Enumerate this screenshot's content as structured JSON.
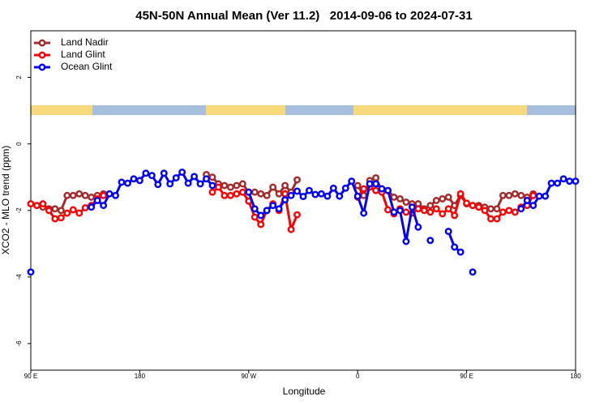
{
  "chart_data": {
    "type": "line",
    "title": "45N-50N Annual Mean (Ver 11.2)   2014-09-06 to 2024-07-31",
    "xlabel": "Longitude",
    "ylabel": "XCO2 - MLO trend (ppm)",
    "x": [
      90,
      95,
      100,
      105,
      110,
      115,
      120,
      125,
      130,
      135,
      140,
      145,
      150,
      155,
      160,
      165,
      170,
      175,
      180,
      185,
      190,
      195,
      200,
      205,
      210,
      215,
      220,
      225,
      230,
      235,
      240,
      245,
      250,
      255,
      260,
      265,
      270,
      275,
      280,
      285,
      290,
      295,
      300,
      305,
      310,
      315,
      320,
      325,
      330,
      335,
      340,
      345,
      350,
      355,
      360,
      365,
      370,
      375,
      380,
      385,
      390,
      395,
      400,
      405,
      410,
      415,
      420,
      425,
      430,
      435,
      440,
      445,
      450,
      455,
      460,
      465,
      470,
      475,
      480,
      485,
      490,
      495,
      500,
      505,
      510,
      515,
      520,
      525,
      530,
      535,
      540
    ],
    "xlim": [
      90,
      540
    ],
    "xticks": [
      {
        "value": 90,
        "label": "90 E"
      },
      180,
      {
        "value": 270,
        "label": "90 W"
      },
      {
        "value": 360,
        "label": "0"
      },
      {
        "value": 450,
        "label": "90 E"
      },
      {
        "value": 540,
        "label": "180"
      }
    ],
    "ylim": [
      -6.8,
      3.4
    ],
    "yticks": [
      -6,
      -4,
      -2,
      0,
      2
    ],
    "legend": "upper left",
    "series": [
      {
        "name": "Land Nadir",
        "color": "#a52a2a",
        "values": [
          null,
          null,
          -1.9,
          -1.95,
          -1.95,
          -2.0,
          -1.55,
          -1.55,
          -1.5,
          -1.55,
          -1.6,
          -1.55,
          -1.5,
          null,
          null,
          null,
          null,
          null,
          null,
          null,
          null,
          null,
          null,
          null,
          null,
          null,
          null,
          null,
          null,
          -0.92,
          -1.0,
          -1.2,
          -1.25,
          -1.3,
          -1.25,
          -1.2,
          -1.45,
          -1.45,
          -1.5,
          -1.55,
          -1.3,
          -1.5,
          -1.25,
          -1.45,
          -1.08,
          null,
          null,
          null,
          null,
          null,
          null,
          null,
          null,
          null,
          -1.25,
          -1.55,
          -1.1,
          -1.02,
          -1.4,
          -1.4,
          -1.6,
          -1.65,
          -1.75,
          -1.8,
          -1.8,
          -1.95,
          -1.85,
          -1.7,
          -1.65,
          -1.6,
          -1.85,
          -1.55,
          -1.8,
          -1.85,
          -1.85,
          -1.9,
          -1.95,
          -1.95,
          -1.55,
          -1.55,
          -1.5,
          -1.55,
          -1.6,
          -1.5,
          null,
          null,
          null,
          null,
          null,
          null,
          null
        ]
      },
      {
        "name": "Land Glint",
        "color": "#ff0000",
        "values": [
          -1.8,
          -1.85,
          -1.8,
          -2.0,
          -2.25,
          -2.22,
          -2.08,
          -1.98,
          -2.08,
          -1.92,
          -1.85,
          -1.65,
          -1.55,
          null,
          null,
          null,
          null,
          null,
          null,
          null,
          null,
          null,
          null,
          null,
          null,
          null,
          null,
          null,
          null,
          null,
          -1.45,
          -1.3,
          -1.55,
          -1.55,
          -1.5,
          -1.45,
          -1.72,
          -2.2,
          -2.42,
          -2.0,
          -1.8,
          -2.0,
          -1.5,
          -2.57,
          -2.13,
          null,
          null,
          null,
          null,
          null,
          null,
          null,
          null,
          null,
          -1.6,
          -1.35,
          -1.3,
          -1.4,
          -1.45,
          -1.98,
          -2.1,
          -1.95,
          -2.05,
          -2.08,
          -1.95,
          -2.0,
          -2.05,
          -1.95,
          -2.1,
          -1.95,
          -2.15,
          -1.5,
          -1.78,
          -1.85,
          -1.9,
          -2.0,
          -2.25,
          -2.25,
          -2.05,
          -2.0,
          -2.05,
          -1.9,
          -1.85,
          -1.55,
          null,
          null,
          null,
          null,
          null,
          null,
          null
        ]
      },
      {
        "name": "Ocean Glint",
        "color": "#0000ff",
        "values": [
          -3.85,
          null,
          null,
          null,
          null,
          null,
          null,
          null,
          null,
          null,
          -1.9,
          -1.7,
          -1.85,
          -1.5,
          -1.55,
          -1.15,
          -1.18,
          -1.05,
          -1.1,
          -0.88,
          -0.95,
          -1.22,
          -0.88,
          -1.2,
          -1.02,
          -0.85,
          -1.18,
          -0.98,
          -1.2,
          -1.05,
          -1.25,
          null,
          null,
          null,
          null,
          null,
          -1.45,
          -1.95,
          -2.15,
          -2.0,
          -1.85,
          -1.95,
          -1.68,
          -1.55,
          -1.42,
          -1.58,
          -1.4,
          -1.52,
          -1.5,
          -1.57,
          -1.33,
          -1.57,
          -1.33,
          -1.12,
          -1.57,
          -2.08,
          -1.2,
          -1.2,
          -1.35,
          -1.4,
          -2.05,
          -2.0,
          -2.93,
          -1.9,
          -2.5,
          null,
          -2.9,
          null,
          null,
          -2.63,
          -3.1,
          -3.25,
          null,
          -3.85,
          null,
          null,
          null,
          null,
          null,
          null,
          null,
          -1.95,
          -1.7,
          -1.85,
          -1.57,
          -1.57,
          -1.18,
          -1.18,
          -1.05,
          -1.12,
          -1.12
        ]
      }
    ]
  }
}
